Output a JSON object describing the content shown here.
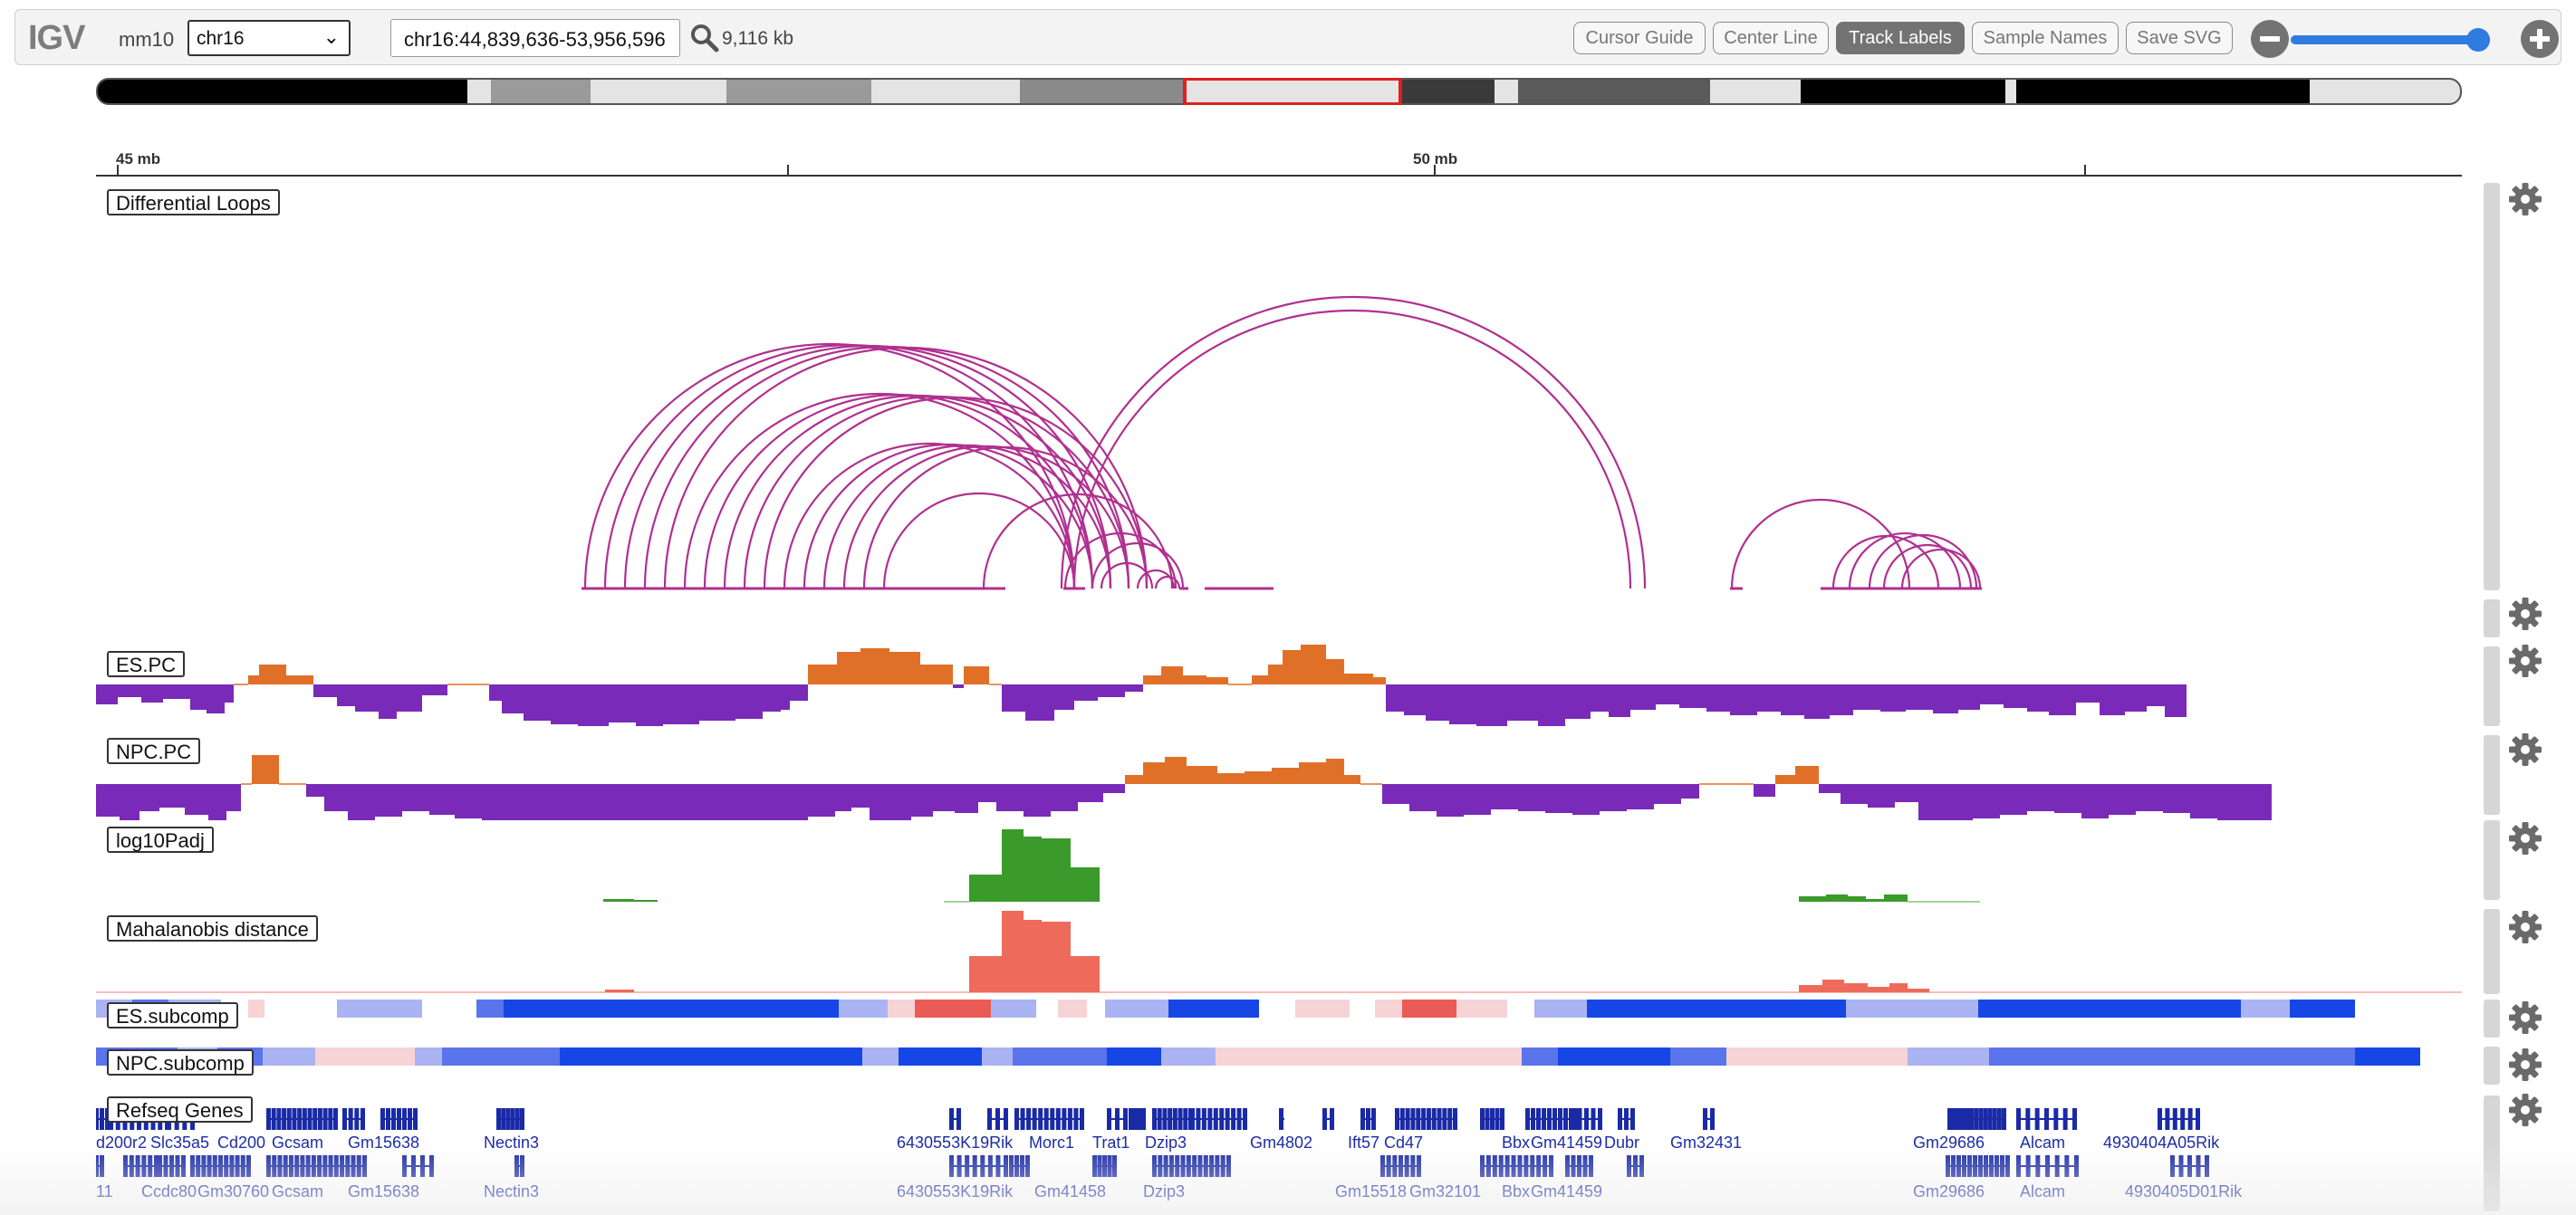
{
  "navbar": {
    "logo": "IGV",
    "genome": "mm10",
    "chromosome": "chr16",
    "locus": "chr16:44,839,636-53,956,596",
    "window_size": "9,116 kb",
    "buttons": [
      "Cursor Guide",
      "Center Line",
      "Track Labels",
      "Sample Names",
      "Save SVG"
    ],
    "active_button": "Track Labels",
    "zoom_level": 0.94
  },
  "ruler": {
    "labels": [
      "45 mb",
      "50 mb"
    ]
  },
  "tracks": {
    "loops": "Differential Loops",
    "es_pc": "ES.PC",
    "npc_pc": "NPC.PC",
    "padj": "log10Padj",
    "mahal": "Mahalanobis distance",
    "es_sub": "ES.subcomp",
    "npc_sub": "NPC.subcomp",
    "refseq": "Refseq Genes"
  },
  "colors": {
    "loop": "#b0308f",
    "pc_positive": "#e07028",
    "pc_negative": "#7a2ab8",
    "padj": "#3a9a2a",
    "mahal": "#ee6b5b",
    "gene": "#1a2aa6",
    "ideogram_highlight": "#e02020"
  },
  "genes": {
    "row1": [
      "d200r2",
      "Slc35a5",
      "Cd200",
      "Gcsam",
      "Gm15638",
      "Nectin3",
      "6430553K19Rik",
      "Morc1",
      "Trat1",
      "Dzip3",
      "Gm4802",
      "Ift57",
      "Cd47",
      "Bbx",
      "Gm41459",
      "Dubr",
      "Gm32431",
      "Gm29686",
      "Alcam",
      "4930404A05Rik"
    ],
    "row2": [
      "11",
      "Ccdc80",
      "Gm30760",
      "Gcsam",
      "Gm15638",
      "Nectin3",
      "6430553K19Rik",
      "Gm41458",
      "Dzip3",
      "Gm15518",
      "Gm32101",
      "Bbx",
      "Gm41459",
      "Gm29686",
      "Alcam",
      "4930405D01Rik"
    ]
  }
}
